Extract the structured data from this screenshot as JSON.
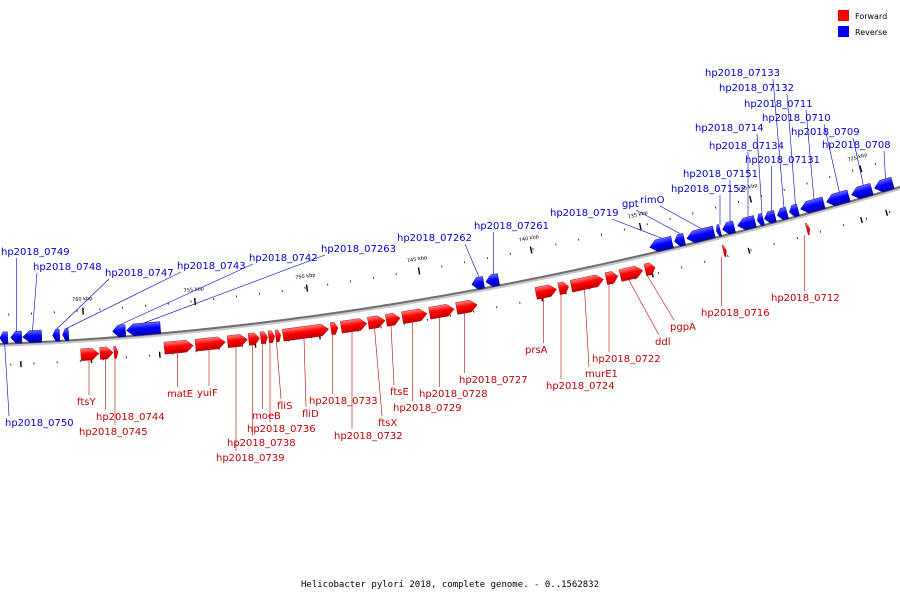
{
  "caption": "Helicobacter pylori 2018, complete genome. - 0..1562832",
  "legend": [
    {
      "label": "Forward",
      "color": "#ff0000"
    },
    {
      "label": "Reverse",
      "color": "#0000ff"
    }
  ],
  "ticks": [
    "760 kbp",
    "755 kbp",
    "750 kbp",
    "745 kbp",
    "740 kbp",
    "735 kbp",
    "730 kbp",
    "725 kbp"
  ],
  "reverse_genes": [
    "hp2018_07133",
    "hp2018_07132",
    "hp2018_0711",
    "hp2018_0710",
    "hp2018_0714",
    "hp2018_0709",
    "hp2018_07134",
    "hp2018_0708",
    "hp2018_07131",
    "hp2018_07151",
    "hp2018_07152",
    "rimO",
    "gpt",
    "hp2018_0719",
    "hp2018_07261",
    "hp2018_07262",
    "hp2018_07263",
    "hp2018_0742",
    "hp2018_0743",
    "hp2018_0747",
    "hp2018_0749",
    "hp2018_0748",
    "hp2018_0750"
  ],
  "forward_genes": [
    "hp2018_0712",
    "hp2018_0716",
    "pgpA",
    "ddl",
    "hp2018_0722",
    "murE1",
    "hp2018_0724",
    "prsA",
    "hp2018_0727",
    "hp2018_0728",
    "hp2018_0729",
    "ftsE",
    "ftsX",
    "hp2018_0732",
    "hp2018_0733",
    "fliD",
    "fliS",
    "hp2018_0736",
    "moeB",
    "hp2018_0738",
    "hp2018_0739",
    "yuiF",
    "matE",
    "ftsY",
    "hp2018_0744",
    "hp2018_0745"
  ]
}
